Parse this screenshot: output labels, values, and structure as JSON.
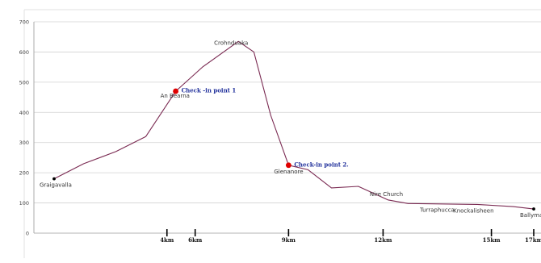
{
  "chart_data": {
    "type": "line",
    "title": "",
    "xlabel": "",
    "ylabel": "",
    "ylim": [
      0,
      700
    ],
    "yticks": [
      0,
      100,
      200,
      300,
      400,
      500,
      600,
      700
    ],
    "grid": true,
    "colors": {
      "line": "#7a2a52",
      "checkpoint": "#e00000",
      "endpoint": "#000000",
      "checkpoint_text": "#1d2d9a",
      "grid": "#d2d2d2"
    },
    "series": [
      {
        "x": [
          0,
          1.05,
          2.19,
          3.25,
          4.31,
          5.26,
          6.53,
          7.08,
          7.68,
          8.31,
          9.0,
          9.83,
          10.78,
          11.83,
          12.55,
          13.45,
          15.0,
          16.27,
          17.0
        ],
        "values": [
          180,
          230,
          270,
          320,
          470,
          550,
          635,
          600,
          390,
          225,
          210,
          150,
          155,
          110,
          98,
          97,
          95,
          88,
          80
        ]
      }
    ],
    "km_markers": [
      {
        "x": 4.0,
        "label": "4km"
      },
      {
        "x": 5.0,
        "label": "6km"
      },
      {
        "x": 8.31,
        "label": "9km"
      },
      {
        "x": 11.66,
        "label": "12km"
      },
      {
        "x": 15.5,
        "label": "15km"
      },
      {
        "x": 17.0,
        "label": "17km"
      }
    ],
    "places": [
      {
        "name": "Graigavalla",
        "x": 0,
        "y": 180
      },
      {
        "name": "An Bearna",
        "x": 4.31,
        "y": 470
      },
      {
        "name": "Crohnduaka",
        "x": 6.53,
        "y": 635
      },
      {
        "name": "Glenanore",
        "x": 8.31,
        "y": 225
      },
      {
        "name": "Nire Church",
        "x": 11.3,
        "y": 155
      },
      {
        "name": "Turraphucca",
        "x": 13.45,
        "y": 97
      },
      {
        "name": "Knockalisheen",
        "x": 15.0,
        "y": 95
      },
      {
        "name": "Ballymacarbry",
        "x": 17.0,
        "y": 80
      }
    ],
    "checkpoints": [
      {
        "label": "Check -in point 1",
        "x": 4.31,
        "y": 470
      },
      {
        "label": "Check-in point 2.",
        "x": 8.31,
        "y": 225
      }
    ],
    "endpoints": [
      {
        "x": 0,
        "y": 180
      },
      {
        "x": 17.0,
        "y": 80
      }
    ]
  }
}
